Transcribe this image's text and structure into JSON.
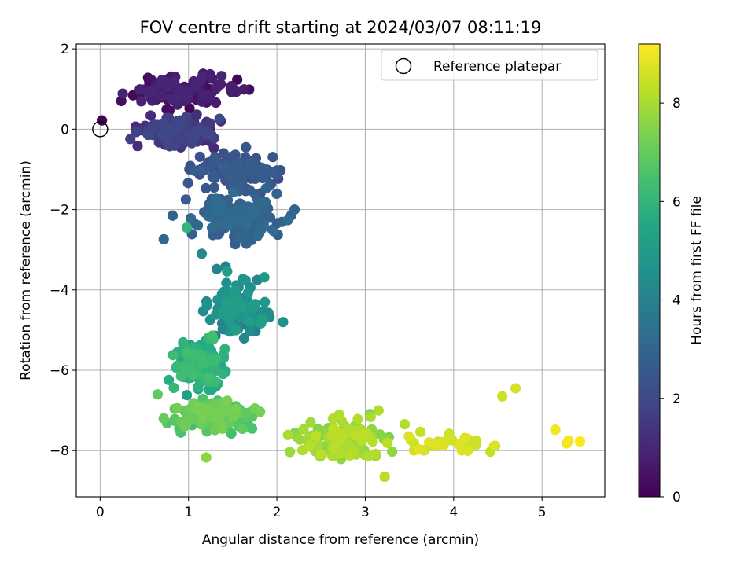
{
  "chart_data": {
    "type": "scatter",
    "title": "FOV centre drift starting at 2024/03/07 08:11:19",
    "xlabel": "Angular distance from reference (arcmin)",
    "ylabel": "Rotation from reference (arcmin)",
    "xlim": [
      -0.27,
      5.71
    ],
    "ylim": [
      -9.15,
      2.12
    ],
    "xticks": [
      0,
      1,
      2,
      3,
      4,
      5
    ],
    "yticks": [
      2,
      0,
      -2,
      -4,
      -6,
      -8
    ],
    "grid": true,
    "legend": {
      "placement": "top-right",
      "entries": [
        "Reference platepar"
      ]
    },
    "reference_point": {
      "x": 0.0,
      "y": 0.0
    },
    "colorbar": {
      "label": "Hours from first FF file",
      "range": [
        0,
        9.2
      ],
      "ticks": [
        0,
        2,
        4,
        6,
        8
      ],
      "colormap": "viridis"
    },
    "clusters": [
      {
        "x": [
          0.05,
          1.8
        ],
        "y": [
          0.3,
          1.6
        ],
        "h": [
          0.1,
          1.0
        ],
        "n": 120
      },
      {
        "x": [
          0.25,
          1.6
        ],
        "y": [
          -0.6,
          0.5
        ],
        "h": [
          1.0,
          2.0
        ],
        "n": 140
      },
      {
        "x": [
          0.9,
          2.2
        ],
        "y": [
          -1.7,
          -0.4
        ],
        "h": [
          2.0,
          2.7
        ],
        "n": 110
      },
      {
        "x": [
          0.9,
          2.25
        ],
        "y": [
          -3.0,
          -1.4
        ],
        "h": [
          2.6,
          3.3
        ],
        "n": 150
      },
      {
        "x": [
          1.1,
          2.05
        ],
        "y": [
          -5.4,
          -3.5
        ],
        "h": [
          4.0,
          5.2
        ],
        "n": 110
      },
      {
        "x": [
          0.7,
          1.55
        ],
        "y": [
          -6.8,
          -4.9
        ],
        "h": [
          5.2,
          6.4
        ],
        "n": 130
      },
      {
        "x": [
          0.65,
          1.9
        ],
        "y": [
          -7.7,
          -6.6
        ],
        "h": [
          6.3,
          7.3
        ],
        "n": 150
      },
      {
        "x": [
          2.0,
          3.5
        ],
        "y": [
          -8.4,
          -7.0
        ],
        "h": [
          7.4,
          8.3
        ],
        "n": 140
      },
      {
        "x": [
          3.3,
          4.6
        ],
        "y": [
          -8.2,
          -7.4
        ],
        "h": [
          8.2,
          8.8
        ],
        "n": 35
      }
    ],
    "points": [
      {
        "x": 0.02,
        "y": 0.22,
        "h": 0.0
      },
      {
        "x": 0.72,
        "y": -2.74,
        "h": 3.0
      },
      {
        "x": 0.97,
        "y": -1.75,
        "h": 2.7
      },
      {
        "x": 0.82,
        "y": -2.15,
        "h": 2.9
      },
      {
        "x": 1.15,
        "y": -3.1,
        "h": 4.3
      },
      {
        "x": 1.32,
        "y": -3.48,
        "h": 4.1
      },
      {
        "x": 1.42,
        "y": -3.42,
        "h": 4.0
      },
      {
        "x": 1.65,
        "y": -0.45,
        "h": 2.5
      },
      {
        "x": 1.75,
        "y": -0.9,
        "h": 2.5
      },
      {
        "x": 1.8,
        "y": -2.6,
        "h": 3.1
      },
      {
        "x": 2.2,
        "y": -2.0,
        "h": 3.0
      },
      {
        "x": 2.07,
        "y": -4.8,
        "h": 4.6
      },
      {
        "x": 1.85,
        "y": -4.52,
        "h": 4.5
      },
      {
        "x": 0.98,
        "y": -2.45,
        "h": 6.0
      },
      {
        "x": 1.2,
        "y": -8.17,
        "h": 7.6
      },
      {
        "x": 0.65,
        "y": -6.6,
        "h": 6.9
      },
      {
        "x": 0.72,
        "y": -7.2,
        "h": 7.0
      },
      {
        "x": 3.22,
        "y": -8.65,
        "h": 8.2
      },
      {
        "x": 3.15,
        "y": -7.0,
        "h": 8.1
      },
      {
        "x": 4.15,
        "y": -7.7,
        "h": 8.5
      },
      {
        "x": 4.47,
        "y": -7.88,
        "h": 8.7
      },
      {
        "x": 4.55,
        "y": -6.65,
        "h": 8.5
      },
      {
        "x": 4.7,
        "y": -6.45,
        "h": 8.6
      },
      {
        "x": 5.15,
        "y": -7.48,
        "h": 9.0
      },
      {
        "x": 5.28,
        "y": -7.82,
        "h": 9.1
      },
      {
        "x": 5.3,
        "y": -7.75,
        "h": 9.1
      },
      {
        "x": 5.43,
        "y": -7.77,
        "h": 9.2
      },
      {
        "x": 3.95,
        "y": -7.58,
        "h": 8.5
      },
      {
        "x": 3.82,
        "y": -7.78,
        "h": 8.4
      }
    ]
  }
}
